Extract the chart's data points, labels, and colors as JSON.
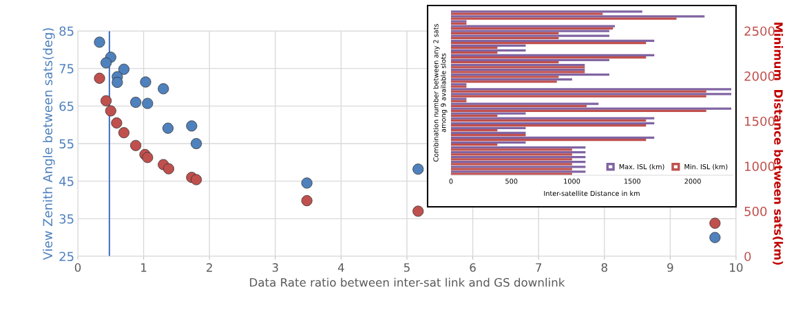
{
  "chart_data": [
    {
      "type": "scatter",
      "xlabel": "Data Rate ratio between inter-sat link and GS downlink",
      "ylabel": "View Zenith Angle between sats(deg)",
      "y2label": "Minimum  Distance between sats(km)",
      "xlim": [
        0,
        10
      ],
      "xticks": [
        0,
        1,
        2,
        3,
        4,
        5,
        6,
        7,
        8,
        9,
        10
      ],
      "ylim": [
        25,
        85
      ],
      "yticks": [
        25,
        35,
        45,
        55,
        65,
        75,
        85
      ],
      "y2lim": [
        0,
        2500
      ],
      "y2ticks": [
        0,
        500,
        1000,
        1500,
        2000,
        2500
      ],
      "grid": true,
      "marker": "circle",
      "series": [
        {
          "color": "#4f81bd",
          "x": [
            0.33,
            0.5,
            0.43,
            0.7,
            0.6,
            0.6,
            1.03,
            1.3,
            0.88,
            1.06,
            1.37,
            1.73,
            1.8,
            3.48,
            5.17,
            9.68
          ],
          "values": [
            82.0,
            78.0,
            76.5,
            74.8,
            72.8,
            71.3,
            71.4,
            69.6,
            66.0,
            65.7,
            59.1,
            59.7,
            55.0,
            44.5,
            48.2,
            30.0
          ]
        },
        {
          "color": "#c0504d",
          "axis": "y2",
          "x": [
            0.33,
            0.43,
            0.5,
            0.59,
            0.7,
            0.88,
            1.02,
            1.06,
            1.3,
            1.38,
            1.73,
            1.8,
            3.48,
            5.17,
            9.68
          ],
          "values": [
            1975,
            1725,
            1613,
            1479,
            1371,
            1229,
            1129,
            1096,
            1017,
            971,
            875,
            850,
            617,
            500,
            367
          ]
        }
      ],
      "ref_lines": [
        {
          "axis": "x",
          "value": 0.48,
          "color": "#4472c4"
        }
      ]
    },
    {
      "type": "bar",
      "orientation": "horizontal",
      "xlabel": "Inter-satellite Distance in km",
      "ylabel": "Combination number between any 2 sats\namong 9 available slots",
      "categories": [
        null,
        null,
        null,
        null,
        null,
        null,
        null,
        null,
        null,
        null,
        null,
        null,
        null,
        null,
        null,
        null,
        null,
        null,
        null,
        null,
        null,
        null,
        null,
        null,
        null,
        null,
        null,
        null,
        null,
        null,
        null,
        null,
        null,
        null
      ],
      "xlim": [
        0,
        2330
      ],
      "xticks": [
        0,
        500,
        1000,
        1500,
        2000
      ],
      "tick_labels": "x",
      "grid": false,
      "legend": "bottom right",
      "series": [
        {
          "name": "Max. ISL (km)",
          "color": "#8064a2",
          "values": [
            1583,
            2098,
            128,
            1356,
            1310,
            1310,
            1682,
            618,
            618,
            1682,
            1310,
            1107,
            1107,
            1310,
            1002,
            128,
            2319,
            2319,
            128,
            1221,
            2319,
            618,
            1682,
            1682,
            618,
            618,
            1682,
            618,
            1113,
            1113,
            1113,
            1113,
            1113,
            1113
          ]
        },
        {
          "name": "Min. ISL (km)",
          "color": "#c0504d",
          "values": [
            1255,
            1866,
            128,
            1340,
            891,
            891,
            1614,
            384,
            384,
            1614,
            891,
            1107,
            1107,
            891,
            876,
            128,
            2112,
            2112,
            128,
            1122,
            2112,
            384,
            1614,
            1614,
            384,
            618,
            1614,
            384,
            1002,
            1002,
            1002,
            1002,
            1002,
            1002
          ]
        }
      ]
    }
  ]
}
